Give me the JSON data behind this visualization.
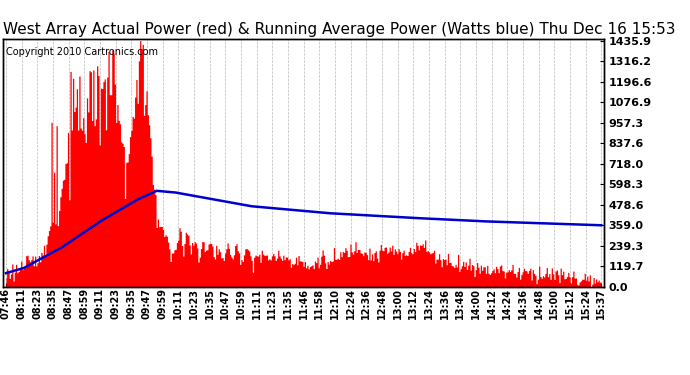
{
  "title": "West Array Actual Power (red) & Running Average Power (Watts blue) Thu Dec 16 15:53",
  "copyright": "Copyright 2010 Cartronics.com",
  "ymin": 0.0,
  "ymax": 1435.9,
  "yticks": [
    0.0,
    119.7,
    239.3,
    359.0,
    478.6,
    598.3,
    718.0,
    837.6,
    957.3,
    1076.9,
    1196.6,
    1316.2,
    1435.9
  ],
  "background_color": "#ffffff",
  "plot_bg_color": "#ffffff",
  "grid_color": "#aaaaaa",
  "bar_color": "#ff0000",
  "line_color": "#0000cc",
  "title_fontsize": 11,
  "copyright_fontsize": 7,
  "tick_fontsize": 8,
  "x_tick_labels": [
    "07:46",
    "08:11",
    "08:23",
    "08:35",
    "08:47",
    "08:59",
    "09:11",
    "09:23",
    "09:35",
    "09:47",
    "09:59",
    "10:11",
    "10:23",
    "10:35",
    "10:47",
    "10:59",
    "11:11",
    "11:23",
    "11:35",
    "11:46",
    "11:58",
    "12:10",
    "12:24",
    "12:36",
    "12:48",
    "13:00",
    "13:12",
    "13:24",
    "13:36",
    "13:48",
    "14:00",
    "14:12",
    "14:24",
    "14:36",
    "14:48",
    "15:00",
    "15:12",
    "15:24",
    "15:37"
  ]
}
